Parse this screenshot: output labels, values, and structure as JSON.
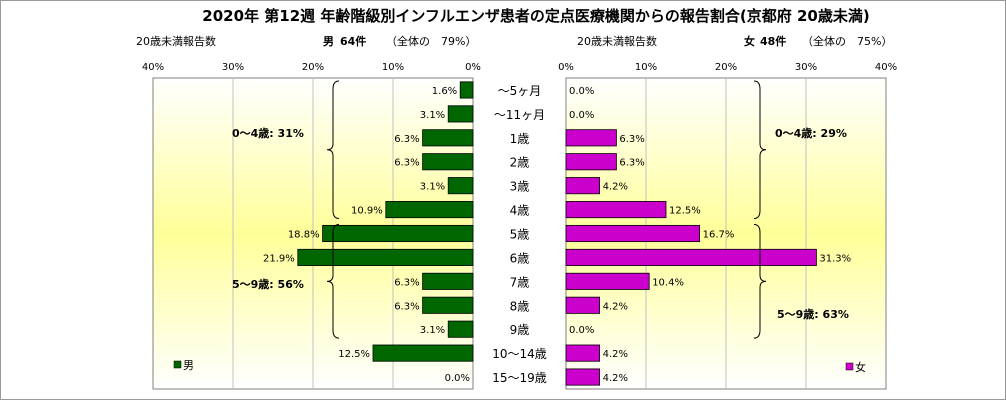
{
  "chart_data": {
    "type": "bar",
    "title": "2020年 第12週 年齢階級別インフルエンザ患者の定点医療機関からの報告割合(京都府 20歳未満)",
    "categories": [
      "〜5ヶ月",
      "〜11ヶ月",
      "1歳",
      "2歳",
      "3歳",
      "4歳",
      "5歳",
      "6歳",
      "7歳",
      "8歳",
      "9歳",
      "10〜14歳",
      "15〜19歳"
    ],
    "panels": [
      {
        "side": "left",
        "header": "20歳未満報告数",
        "summary_prefix": "男",
        "summary_count": "64件",
        "summary_total": "（全体の　79%）",
        "legend": "男",
        "color": "#006600",
        "ticks": [
          "40%",
          "30%",
          "20%",
          "10%",
          "0%"
        ],
        "xlim": [
          0,
          40
        ],
        "values": [
          1.6,
          3.1,
          6.3,
          6.3,
          3.1,
          10.9,
          18.8,
          21.9,
          6.3,
          6.3,
          3.1,
          12.5,
          0.0
        ],
        "labels": [
          "1.6%",
          "3.1%",
          "6.3%",
          "6.3%",
          "3.1%",
          "10.9%",
          "18.8%",
          "21.9%",
          "6.3%",
          "6.3%",
          "3.1%",
          "12.5%",
          "0.0%"
        ],
        "groups": [
          {
            "text": "0〜4歳: 31%"
          },
          {
            "text": "5〜9歳: 56%"
          }
        ]
      },
      {
        "side": "right",
        "header": "20歳未満報告数",
        "summary_prefix": "女",
        "summary_count": "48件",
        "summary_total": "（全体の　75%）",
        "legend": "女",
        "color": "#cc00cc",
        "ticks": [
          "0%",
          "10%",
          "20%",
          "30%",
          "40%"
        ],
        "xlim": [
          0,
          40
        ],
        "values": [
          0.0,
          0.0,
          6.3,
          6.3,
          4.2,
          12.5,
          16.7,
          31.3,
          10.4,
          4.2,
          0.0,
          4.2,
          4.2
        ],
        "labels": [
          "0.0%",
          "0.0%",
          "6.3%",
          "6.3%",
          "4.2%",
          "12.5%",
          "16.7%",
          "31.3%",
          "10.4%",
          "4.2%",
          "0.0%",
          "4.2%",
          "4.2%"
        ],
        "groups": [
          {
            "text": "0〜4歳: 29%"
          },
          {
            "text": "5〜9歳: 63%"
          }
        ]
      }
    ]
  }
}
